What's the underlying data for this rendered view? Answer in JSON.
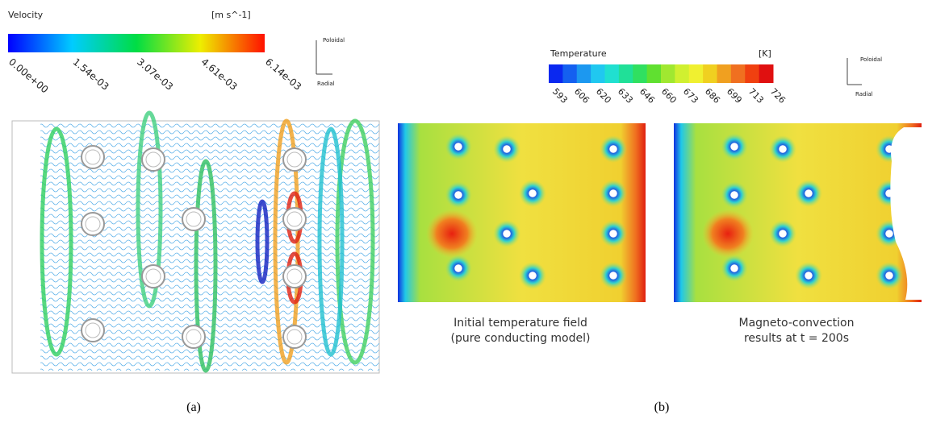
{
  "panel_a": {
    "colorbar": {
      "title": "Velocity",
      "unit": "[m s^-1]",
      "ticks": [
        "0.00e+00",
        "1.54e-03",
        "3.07e-03",
        "4.61e-03",
        "6.14e-03"
      ]
    },
    "axes": {
      "up": "Poloidal",
      "right": "Radial"
    },
    "label": "(a)"
  },
  "panel_b": {
    "colorbar": {
      "title": "Temperature",
      "unit": "[K]",
      "ticks": [
        "593",
        "606",
        "620",
        "633",
        "646",
        "660",
        "673",
        "686",
        "699",
        "713",
        "726"
      ]
    },
    "axes": {
      "up": "Poloidal",
      "right": "Radial"
    },
    "captions": [
      [
        "Initial temperature field",
        "(pure conducting model)"
      ],
      [
        "Magneto-convection",
        "results at t = 200s"
      ]
    ],
    "label": "(b)"
  }
}
